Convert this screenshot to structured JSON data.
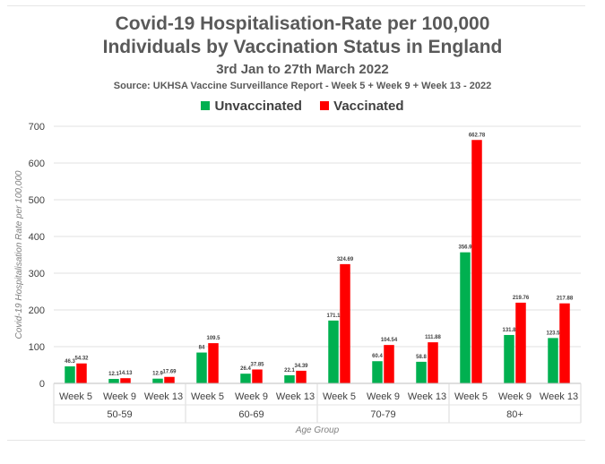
{
  "chart_data": {
    "type": "bar",
    "title": "Covid-19 Hospitalisation-Rate per 100,000",
    "title_line2": "Individuals by Vaccination Status in England",
    "subtitle": "3rd Jan to 27th March 2022",
    "source": "Source: UKHSA Vaccine Surveillance Report - Week 5 + Week 9 + Week 13 - 2022",
    "xlabel": "Age Group",
    "ylabel": "Covid-19 Hospitalisation Rate per 100,000",
    "ylim": [
      0,
      700
    ],
    "yticks": [
      "0",
      "100",
      "200",
      "300",
      "400",
      "500",
      "600",
      "700"
    ],
    "grid": true,
    "legend_position": "top",
    "groups": [
      "50-59",
      "60-69",
      "70-79",
      "80+"
    ],
    "categories": [
      "Week 5",
      "Week 9",
      "Week 13",
      "Week 5",
      "Week 9",
      "Week 13",
      "Week 5",
      "Week 9",
      "Week 13",
      "Week 5",
      "Week 9",
      "Week 13"
    ],
    "series": [
      {
        "name": "Unvaccinated",
        "color": "#00b050",
        "values": [
          46.3,
          12.1,
          12.9,
          84,
          26.4,
          22.1,
          171.1,
          60.4,
          58.8,
          356.9,
          131.8,
          123.5
        ],
        "labels": [
          "46.3",
          "12.1",
          "12.9",
          "84",
          "26.4",
          "22.1",
          "171.1",
          "60.4",
          "58.8",
          "356.9",
          "131.8",
          "123.5"
        ]
      },
      {
        "name": "Vaccinated",
        "color": "#ff0000",
        "values": [
          54.32,
          14.13,
          17.69,
          109.5,
          37.85,
          34.39,
          324.69,
          104.54,
          111.88,
          662.78,
          219.76,
          217.88
        ],
        "labels": [
          "54.32",
          "14.13",
          "17.69",
          "109.5",
          "37.85",
          "34.39",
          "324.69",
          "104.54",
          "111.88",
          "662.78",
          "219.76",
          "217.88"
        ]
      }
    ]
  }
}
